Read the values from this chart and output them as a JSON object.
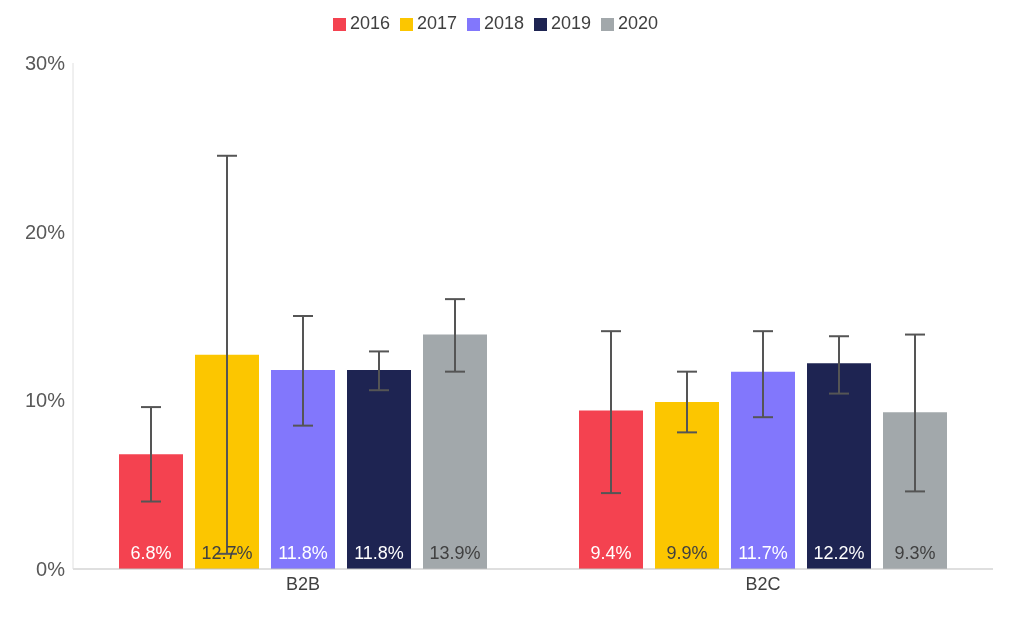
{
  "chart_data": {
    "type": "bar",
    "categories": [
      "B2B",
      "B2C"
    ],
    "series": [
      {
        "name": "2016",
        "color": "#f44250",
        "values": [
          6.8,
          9.4
        ],
        "value_labels": [
          "6.8%",
          "9.4%"
        ],
        "errors": [
          [
            4.0,
            9.6
          ],
          [
            4.5,
            14.1
          ]
        ]
      },
      {
        "name": "2017",
        "color": "#fcc600",
        "values": [
          12.7,
          9.9
        ],
        "value_labels": [
          "12.7%",
          "9.9%"
        ],
        "errors": [
          [
            0.9,
            24.5
          ],
          [
            8.1,
            11.7
          ]
        ]
      },
      {
        "name": "2018",
        "color": "#8277fc",
        "values": [
          11.8,
          11.7
        ],
        "value_labels": [
          "11.8%",
          "11.7%"
        ],
        "errors": [
          [
            8.5,
            15.0
          ],
          [
            9.0,
            14.1
          ]
        ]
      },
      {
        "name": "2019",
        "color": "#1e2452",
        "values": [
          11.8,
          12.2
        ],
        "value_labels": [
          "11.8%",
          "12.2%"
        ],
        "errors": [
          [
            10.6,
            12.9
          ],
          [
            10.4,
            13.8
          ]
        ]
      },
      {
        "name": "2020",
        "color": "#a2a8ab",
        "values": [
          13.9,
          9.3
        ],
        "value_labels": [
          "13.9%",
          "9.3%"
        ],
        "errors": [
          [
            11.7,
            16.0
          ],
          [
            4.6,
            13.9
          ]
        ]
      }
    ],
    "ylim": [
      0,
      30
    ],
    "yticks": [
      {
        "value": 0,
        "label": "0%"
      },
      {
        "value": 10,
        "label": "10%"
      },
      {
        "value": 20,
        "label": "20%"
      },
      {
        "value": 30,
        "label": "30%"
      }
    ],
    "grid": false,
    "legend": "top"
  }
}
